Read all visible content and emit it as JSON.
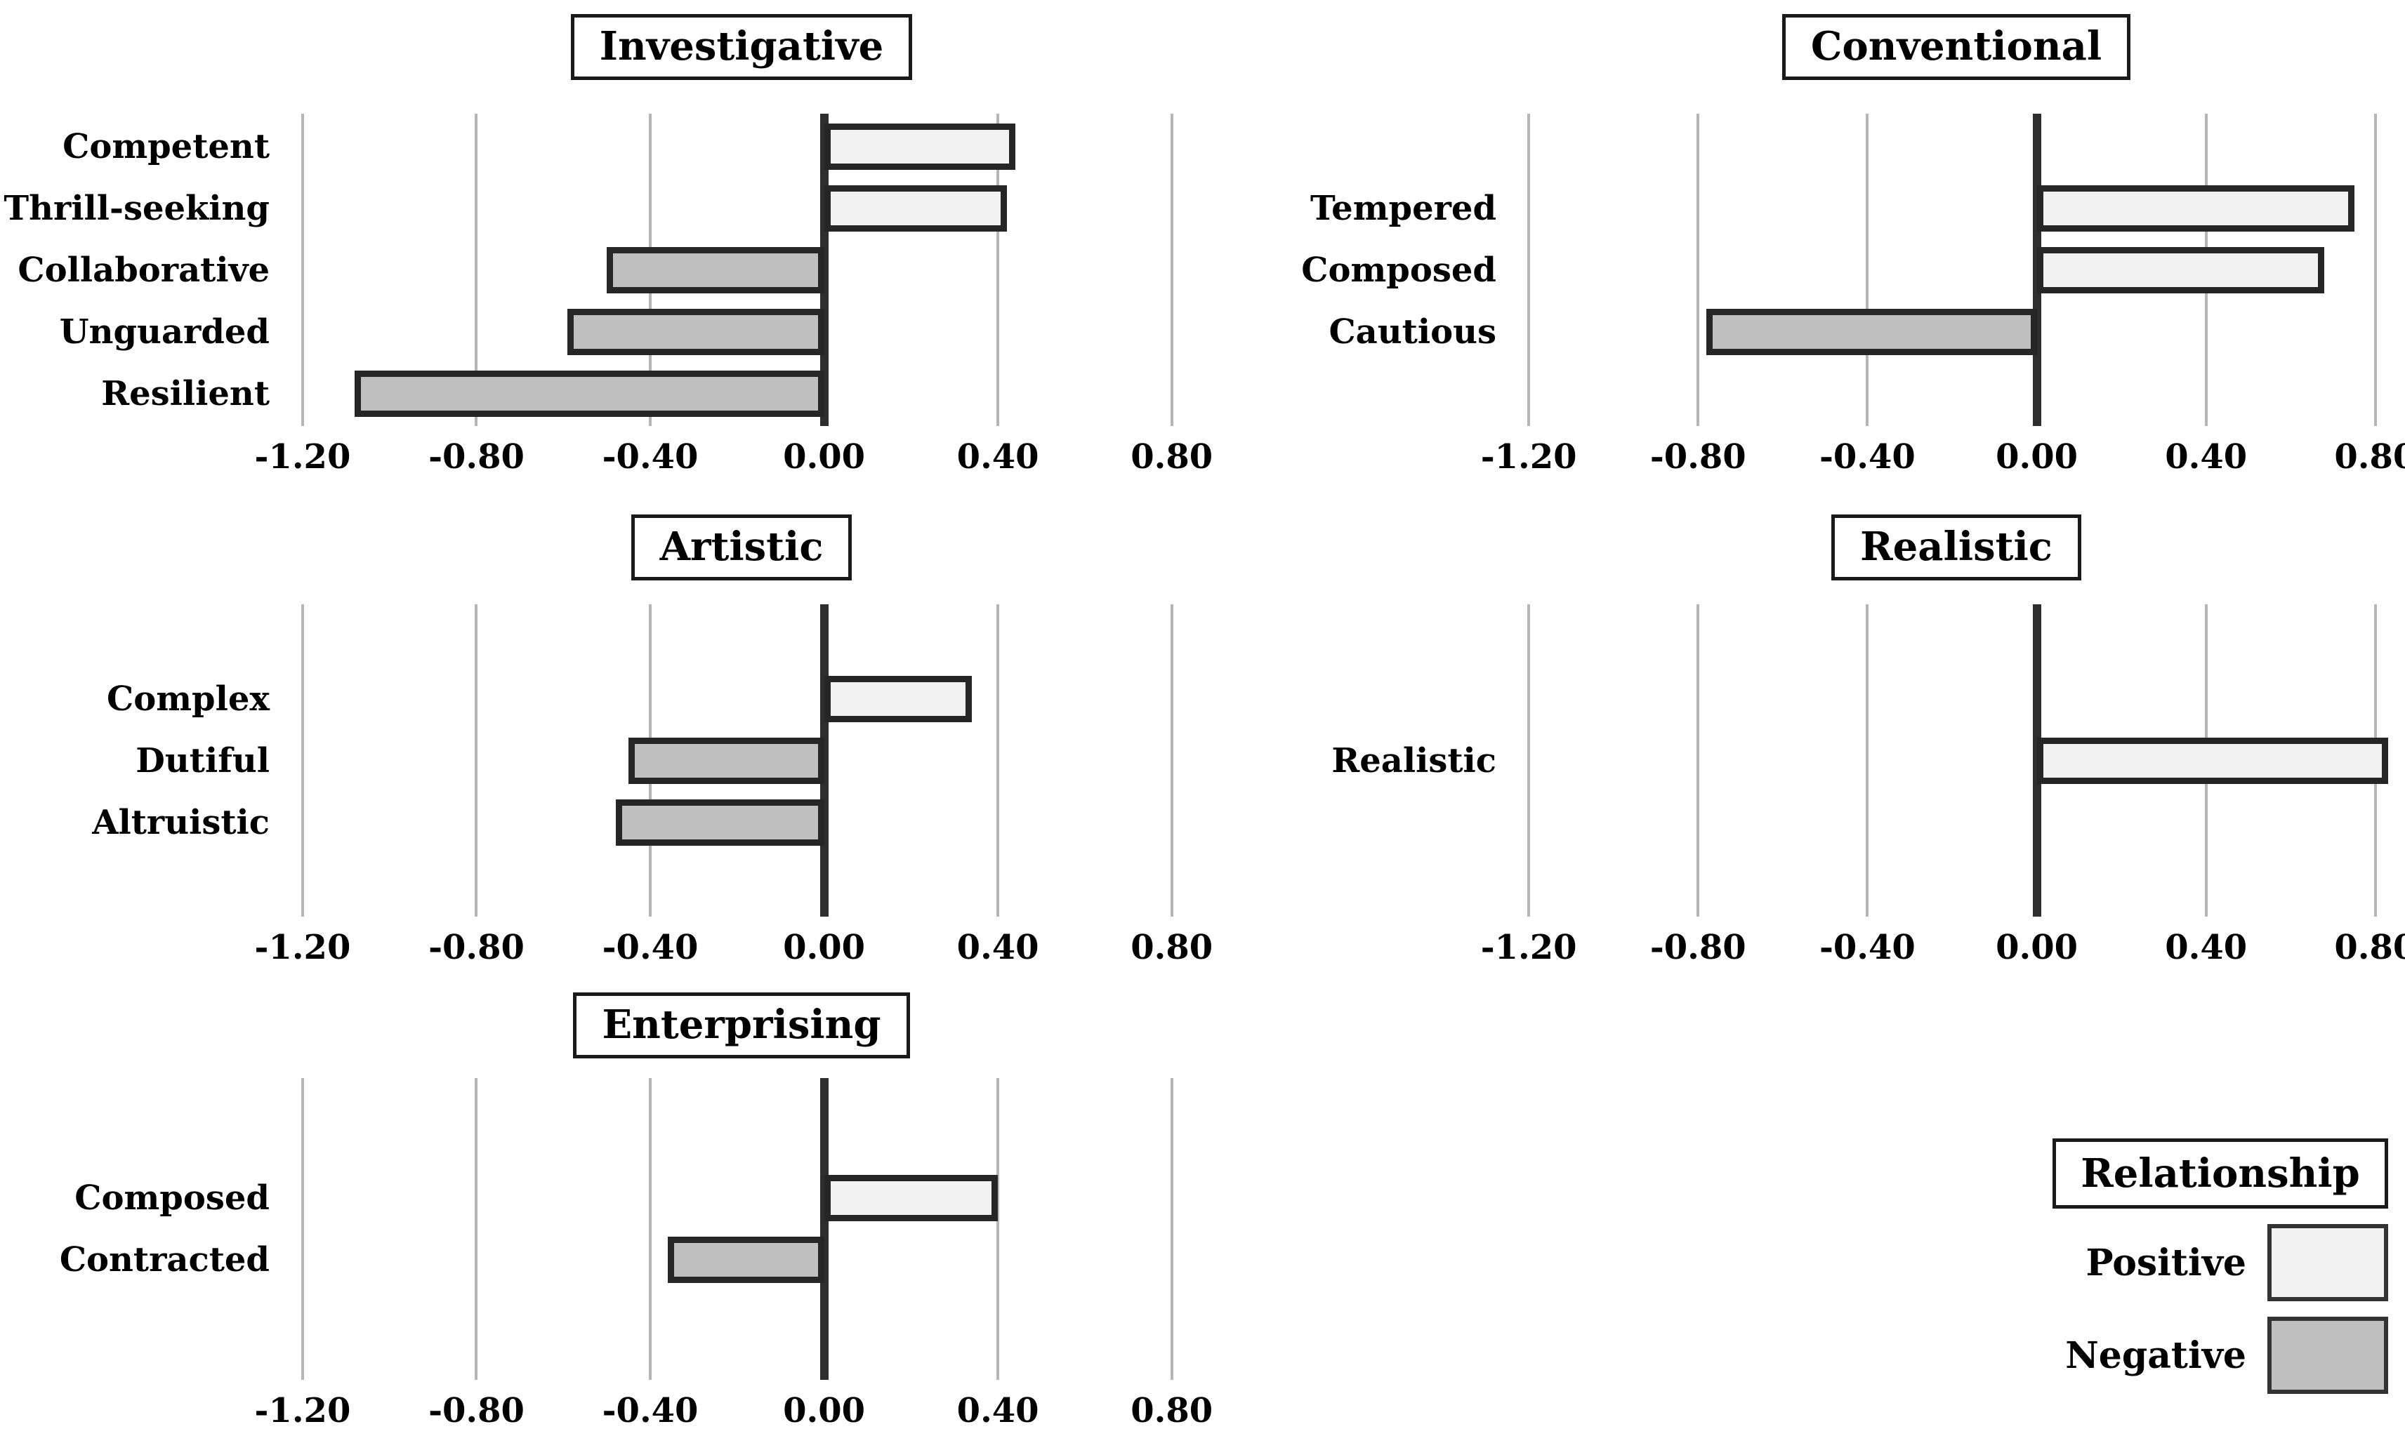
{
  "chart_data": [
    {
      "id": "investigative",
      "type": "bar",
      "orientation": "horizontal",
      "title": "Investigative",
      "categories": [
        "Competent",
        "Thrill-seeking",
        "Collaborative",
        "Unguarded",
        "Resilient"
      ],
      "values": [
        0.44,
        0.42,
        -0.5,
        -0.59,
        -1.08
      ],
      "panel": {
        "row": 1,
        "col": 1
      }
    },
    {
      "id": "conventional",
      "type": "bar",
      "orientation": "horizontal",
      "title": "Conventional",
      "categories": [
        "Tempered",
        "Composed",
        "Cautious"
      ],
      "values": [
        0.75,
        0.68,
        -0.78
      ],
      "panel": {
        "row": 1,
        "col": 2
      }
    },
    {
      "id": "artistic",
      "type": "bar",
      "orientation": "horizontal",
      "title": "Artistic",
      "categories": [
        "Complex",
        "Dutiful",
        "Altruistic"
      ],
      "values": [
        0.34,
        -0.45,
        -0.48
      ],
      "panel": {
        "row": 2,
        "col": 1
      }
    },
    {
      "id": "realistic",
      "type": "bar",
      "orientation": "horizontal",
      "title": "Realistic",
      "categories": [
        "Realistic"
      ],
      "values": [
        0.83
      ],
      "panel": {
        "row": 2,
        "col": 2
      }
    },
    {
      "id": "enterprising",
      "type": "bar",
      "orientation": "horizontal",
      "title": "Enterprising",
      "categories": [
        "Composed",
        "Contracted"
      ],
      "values": [
        0.4,
        -0.36
      ],
      "panel": {
        "row": 3,
        "col": 1
      }
    }
  ],
  "axis": {
    "xlim_shown": [
      -1.2,
      0.8
    ],
    "ticks": [
      {
        "value": -1.2,
        "label": "-1.20"
      },
      {
        "value": -0.8,
        "label": "-0.80"
      },
      {
        "value": -0.4,
        "label": "-0.40"
      },
      {
        "value": 0.0,
        "label": "0.00"
      },
      {
        "value": 0.4,
        "label": "0.40"
      },
      {
        "value": 0.8,
        "label": "0.80"
      }
    ],
    "grid": "vertical-on"
  },
  "legend": {
    "title": "Relationship",
    "position": "bottom-right",
    "entries": [
      {
        "label": "Positive",
        "kind": "positive"
      },
      {
        "label": "Negative",
        "kind": "negative"
      }
    ]
  },
  "colors": {
    "positive_fill": "#f2f2f2",
    "negative_fill": "#bfbfbf",
    "bar_border": "#262626",
    "gridline": "#b5b5b5",
    "zero_axis": "#2e2e2e",
    "box_border": "#1a1a1a",
    "text": "#000000",
    "background": "#ffffff"
  }
}
